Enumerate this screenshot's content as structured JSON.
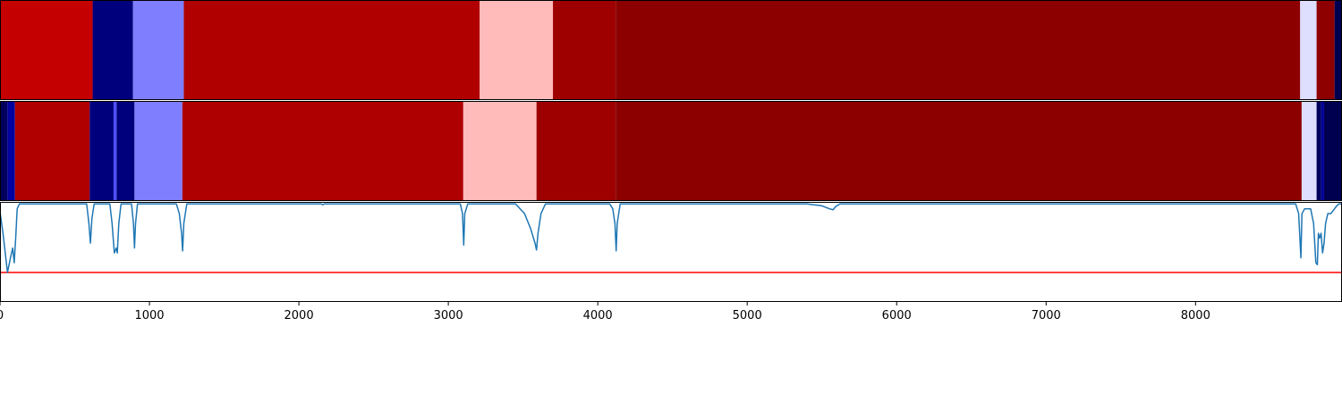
{
  "chart_data": {
    "type": "heatmap",
    "x_axis": {
      "xlim": [
        0,
        8980
      ],
      "ticks": [
        0,
        1000,
        2000,
        3000,
        4000,
        5000,
        6000,
        7000,
        8000
      ],
      "tick_labels": [
        "0",
        "1000",
        "2000",
        "3000",
        "4000",
        "5000",
        "6000",
        "7000",
        "8000"
      ]
    },
    "track_top": {
      "segments": [
        {
          "start": 0,
          "end": 620,
          "color": "#c40000"
        },
        {
          "start": 620,
          "end": 890,
          "color": "#00007c"
        },
        {
          "start": 890,
          "end": 1230,
          "color": "#7e7eff"
        },
        {
          "start": 1230,
          "end": 3210,
          "color": "#b00000"
        },
        {
          "start": 3210,
          "end": 3700,
          "color": "#ffbaba"
        },
        {
          "start": 3700,
          "end": 4120,
          "color": "#9e0000"
        },
        {
          "start": 4120,
          "end": 8700,
          "color": "#8c0000"
        },
        {
          "start": 8700,
          "end": 8810,
          "color": "#dedeff"
        },
        {
          "start": 8810,
          "end": 8930,
          "color": "#8e0000"
        },
        {
          "start": 8930,
          "end": 8980,
          "color": "#000050"
        }
      ]
    },
    "track_bottom": {
      "segments": [
        {
          "start": 0,
          "end": 50,
          "color": "#00005c"
        },
        {
          "start": 50,
          "end": 100,
          "color": "#0000a0"
        },
        {
          "start": 100,
          "end": 600,
          "color": "#b00000"
        },
        {
          "start": 600,
          "end": 760,
          "color": "#00007c"
        },
        {
          "start": 760,
          "end": 780,
          "color": "#5050ff"
        },
        {
          "start": 780,
          "end": 900,
          "color": "#00007c"
        },
        {
          "start": 900,
          "end": 1220,
          "color": "#7e7eff"
        },
        {
          "start": 1220,
          "end": 3100,
          "color": "#ae0000"
        },
        {
          "start": 3100,
          "end": 3590,
          "color": "#ffbaba"
        },
        {
          "start": 3590,
          "end": 4120,
          "color": "#9e0000"
        },
        {
          "start": 4120,
          "end": 8710,
          "color": "#8c0000"
        },
        {
          "start": 8710,
          "end": 8810,
          "color": "#dedeff"
        },
        {
          "start": 8810,
          "end": 8840,
          "color": "#00005c"
        },
        {
          "start": 8840,
          "end": 8860,
          "color": "#000098"
        },
        {
          "start": 8860,
          "end": 8980,
          "color": "#000050"
        }
      ]
    },
    "line_track": {
      "line_color": "#1f77b4",
      "threshold_color": "#ff0000",
      "ylim": [
        -1.0,
        0.02
      ],
      "threshold": -0.7,
      "points": [
        [
          0,
          -0.08
        ],
        [
          20,
          -0.3
        ],
        [
          35,
          -0.5
        ],
        [
          50,
          -0.7
        ],
        [
          70,
          -0.55
        ],
        [
          85,
          -0.45
        ],
        [
          95,
          -0.6
        ],
        [
          105,
          -0.35
        ],
        [
          115,
          -0.05
        ],
        [
          130,
          0
        ],
        [
          580,
          0
        ],
        [
          595,
          -0.2
        ],
        [
          605,
          -0.4
        ],
        [
          615,
          -0.15
        ],
        [
          630,
          0
        ],
        [
          735,
          0
        ],
        [
          750,
          -0.2
        ],
        [
          765,
          -0.5
        ],
        [
          778,
          -0.45
        ],
        [
          785,
          -0.5
        ],
        [
          795,
          -0.2
        ],
        [
          810,
          0
        ],
        [
          880,
          0
        ],
        [
          893,
          -0.2
        ],
        [
          900,
          -0.45
        ],
        [
          907,
          -0.2
        ],
        [
          920,
          0
        ],
        [
          1180,
          0
        ],
        [
          1200,
          -0.1
        ],
        [
          1215,
          -0.3
        ],
        [
          1222,
          -0.48
        ],
        [
          1230,
          -0.2
        ],
        [
          1250,
          0
        ],
        [
          2150,
          0
        ],
        [
          2160,
          -0.01
        ],
        [
          2170,
          0
        ],
        [
          3080,
          0
        ],
        [
          3095,
          -0.1
        ],
        [
          3103,
          -0.42
        ],
        [
          3110,
          -0.1
        ],
        [
          3130,
          0
        ],
        [
          3450,
          0
        ],
        [
          3510,
          -0.1
        ],
        [
          3550,
          -0.25
        ],
        [
          3570,
          -0.35
        ],
        [
          3580,
          -0.4
        ],
        [
          3590,
          -0.47
        ],
        [
          3600,
          -0.3
        ],
        [
          3620,
          -0.1
        ],
        [
          3650,
          0
        ],
        [
          4080,
          0
        ],
        [
          4100,
          -0.05
        ],
        [
          4115,
          -0.2
        ],
        [
          4123,
          -0.48
        ],
        [
          4130,
          -0.2
        ],
        [
          4150,
          0
        ],
        [
          5400,
          0
        ],
        [
          5500,
          -0.02
        ],
        [
          5550,
          -0.05
        ],
        [
          5575,
          -0.06
        ],
        [
          5590,
          -0.03
        ],
        [
          5620,
          0
        ],
        [
          8670,
          0
        ],
        [
          8690,
          -0.1
        ],
        [
          8705,
          -0.55
        ],
        [
          8712,
          -0.1
        ],
        [
          8730,
          -0.05
        ],
        [
          8770,
          -0.05
        ],
        [
          8790,
          -0.2
        ],
        [
          8805,
          -0.6
        ],
        [
          8815,
          -0.62
        ],
        [
          8822,
          -0.3
        ],
        [
          8830,
          -0.35
        ],
        [
          8840,
          -0.3
        ],
        [
          8850,
          -0.5
        ],
        [
          8860,
          -0.4
        ],
        [
          8870,
          -0.2
        ],
        [
          8885,
          -0.1
        ],
        [
          8905,
          -0.1
        ],
        [
          8925,
          -0.06
        ],
        [
          8945,
          -0.02
        ],
        [
          8960,
          0
        ],
        [
          8980,
          0
        ]
      ]
    }
  }
}
